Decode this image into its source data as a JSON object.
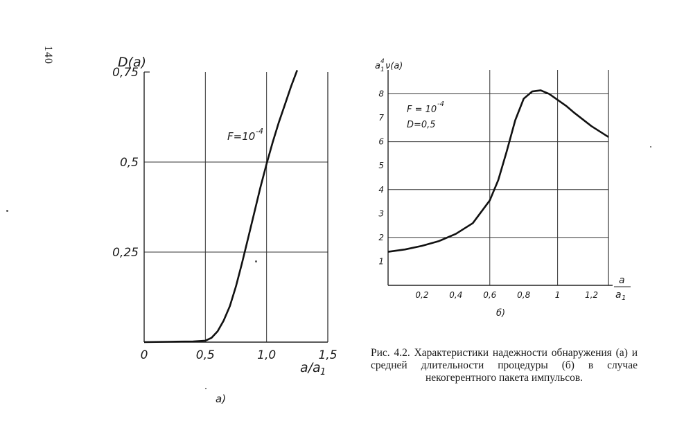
{
  "page_number": "140",
  "chart_data": [
    {
      "panel_label": "а)",
      "type": "line",
      "ylabel": "D(a)",
      "xlabel_num": "a",
      "xlabel_den": "a1",
      "annotations": [
        "F = 10^-4"
      ],
      "annotation_main": "F=10",
      "annotation_exp": "-4",
      "xlim": [
        0,
        1.5
      ],
      "ylim": [
        0,
        0.75
      ],
      "x_ticks": [
        {
          "v": 0,
          "label": "0"
        },
        {
          "v": 0.5,
          "label": "0,5"
        },
        {
          "v": 1.0,
          "label": "1,0"
        },
        {
          "v": 1.5,
          "label": "1,5"
        }
      ],
      "y_ticks": [
        {
          "v": 0.25,
          "label": "0,25"
        },
        {
          "v": 0.5,
          "label": "0,5"
        },
        {
          "v": 0.75,
          "label": "0,75"
        }
      ],
      "grid": true,
      "series": [
        {
          "x": [
            0,
            0.2,
            0.4,
            0.5,
            0.55,
            0.6,
            0.65,
            0.7,
            0.75,
            0.8,
            0.85,
            0.9,
            0.95,
            1.0,
            1.05,
            1.1,
            1.15,
            1.2,
            1.25
          ],
          "y": [
            0,
            0.001,
            0.002,
            0.004,
            0.012,
            0.03,
            0.06,
            0.1,
            0.155,
            0.22,
            0.29,
            0.36,
            0.43,
            0.495,
            0.555,
            0.61,
            0.66,
            0.71,
            0.755
          ]
        }
      ]
    },
    {
      "panel_label": "б)",
      "type": "line",
      "ylabel_main": "a",
      "ylabel_sub": "1",
      "ylabel_sup": "4",
      "ylabel_rest": "ν(a)",
      "xlabel_num": "a",
      "xlabel_den": "a1",
      "annotation_main": "F = 10",
      "annotation_exp": "-4",
      "annotation_2": "D=0,5",
      "xlim": [
        0,
        1.3
      ],
      "ylim": [
        0,
        9
      ],
      "x_ticks": [
        {
          "v": 0.2,
          "label": "0,2"
        },
        {
          "v": 0.4,
          "label": "0,4"
        },
        {
          "v": 0.6,
          "label": "0,6"
        },
        {
          "v": 0.8,
          "label": "0,8"
        },
        {
          "v": 1.0,
          "label": "1"
        },
        {
          "v": 1.2,
          "label": "1,2"
        }
      ],
      "y_ticks": [
        {
          "v": 1,
          "label": "1"
        },
        {
          "v": 2,
          "label": "2"
        },
        {
          "v": 3,
          "label": "3"
        },
        {
          "v": 4,
          "label": "4"
        },
        {
          "v": 5,
          "label": "5"
        },
        {
          "v": 6,
          "label": "6"
        },
        {
          "v": 7,
          "label": "7"
        },
        {
          "v": 8,
          "label": "8"
        }
      ],
      "grid": true,
      "series": [
        {
          "x": [
            0,
            0.1,
            0.2,
            0.3,
            0.4,
            0.5,
            0.6,
            0.65,
            0.7,
            0.75,
            0.8,
            0.85,
            0.9,
            0.95,
            1.0,
            1.05,
            1.1,
            1.2,
            1.3
          ],
          "y": [
            1.4,
            1.5,
            1.65,
            1.85,
            2.15,
            2.6,
            3.55,
            4.4,
            5.6,
            6.9,
            7.8,
            8.1,
            8.15,
            8.0,
            7.75,
            7.5,
            7.2,
            6.65,
            6.2
          ]
        }
      ]
    }
  ],
  "caption": "Рис. 4.2. Характеристики надежности обнаружения (а) и средней длительности процедуры (б) в случае некогерентного пакета импульсов."
}
